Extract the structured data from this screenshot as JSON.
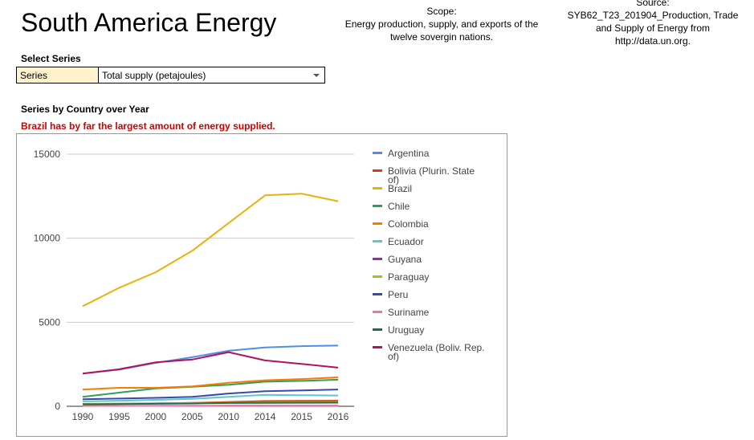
{
  "page": {
    "title": "South America Energy",
    "scope_line1": "Scope:",
    "scope_line2": "Energy production, supply, and exports of the",
    "scope_line3": "twelve sovergin nations.",
    "source_line1": "Source:",
    "source_line2": "SYB62_T23_201904_Production, Trade",
    "source_line3": "and Supply of Energy from",
    "source_line4": "http://data.un.org."
  },
  "selector": {
    "heading": "Select Series",
    "label": "Series",
    "value": "Total supply (petajoules)"
  },
  "chart_section": {
    "heading": "Series by Country over Year",
    "note": "Brazil has by far the largest amount of energy supplied."
  },
  "chart_data": {
    "type": "line",
    "x": [
      "1990",
      "1995",
      "2000",
      "2005",
      "2010",
      "2014",
      "2015",
      "2016"
    ],
    "ylim": [
      0,
      15000
    ],
    "yticks": [
      0,
      5000,
      10000,
      15000
    ],
    "grid": true,
    "legend_position": "right",
    "series": [
      {
        "name": "Argentina",
        "color": "#4f8ee6",
        "values": [
          1950,
          2180,
          2580,
          2920,
          3300,
          3500,
          3580,
          3610
        ]
      },
      {
        "name": "Bolivia (Plurin. State of)",
        "color": "#dc3912",
        "values": [
          110,
          140,
          170,
          200,
          260,
          310,
          320,
          330
        ]
      },
      {
        "name": "Brazil",
        "color": "#e8b20c",
        "values": [
          5950,
          7050,
          7980,
          9250,
          10900,
          12550,
          12650,
          12200
        ]
      },
      {
        "name": "Chile",
        "color": "#2f9e5b",
        "values": [
          560,
          810,
          1060,
          1160,
          1280,
          1460,
          1510,
          1580
        ]
      },
      {
        "name": "Colombia",
        "color": "#f57c00",
        "values": [
          1000,
          1100,
          1100,
          1180,
          1400,
          1550,
          1620,
          1720
        ]
      },
      {
        "name": "Ecuador",
        "color": "#5fc7c7",
        "values": [
          290,
          330,
          380,
          440,
          560,
          680,
          660,
          640
        ]
      },
      {
        "name": "Guyana",
        "color": "#9c27b0",
        "values": [
          25,
          25,
          28,
          30,
          32,
          35,
          36,
          38
        ]
      },
      {
        "name": "Paraguay",
        "color": "#b5b81a",
        "values": [
          145,
          165,
          175,
          195,
          215,
          235,
          245,
          255
        ]
      },
      {
        "name": "Peru",
        "color": "#3949ab",
        "values": [
          420,
          460,
          500,
          560,
          760,
          900,
          940,
          1000
        ]
      },
      {
        "name": "Suriname",
        "color": "#e87ba0",
        "values": [
          20,
          22,
          25,
          28,
          30,
          32,
          33,
          34
        ]
      },
      {
        "name": "Uruguay",
        "color": "#1b6b55",
        "values": [
          120,
          135,
          150,
          165,
          195,
          205,
          210,
          215
        ]
      },
      {
        "name": "Venezuela (Boliv. Rep. of)",
        "color": "#b0135e",
        "values": [
          1950,
          2200,
          2620,
          2780,
          3220,
          2730,
          2520,
          2300
        ]
      }
    ]
  }
}
